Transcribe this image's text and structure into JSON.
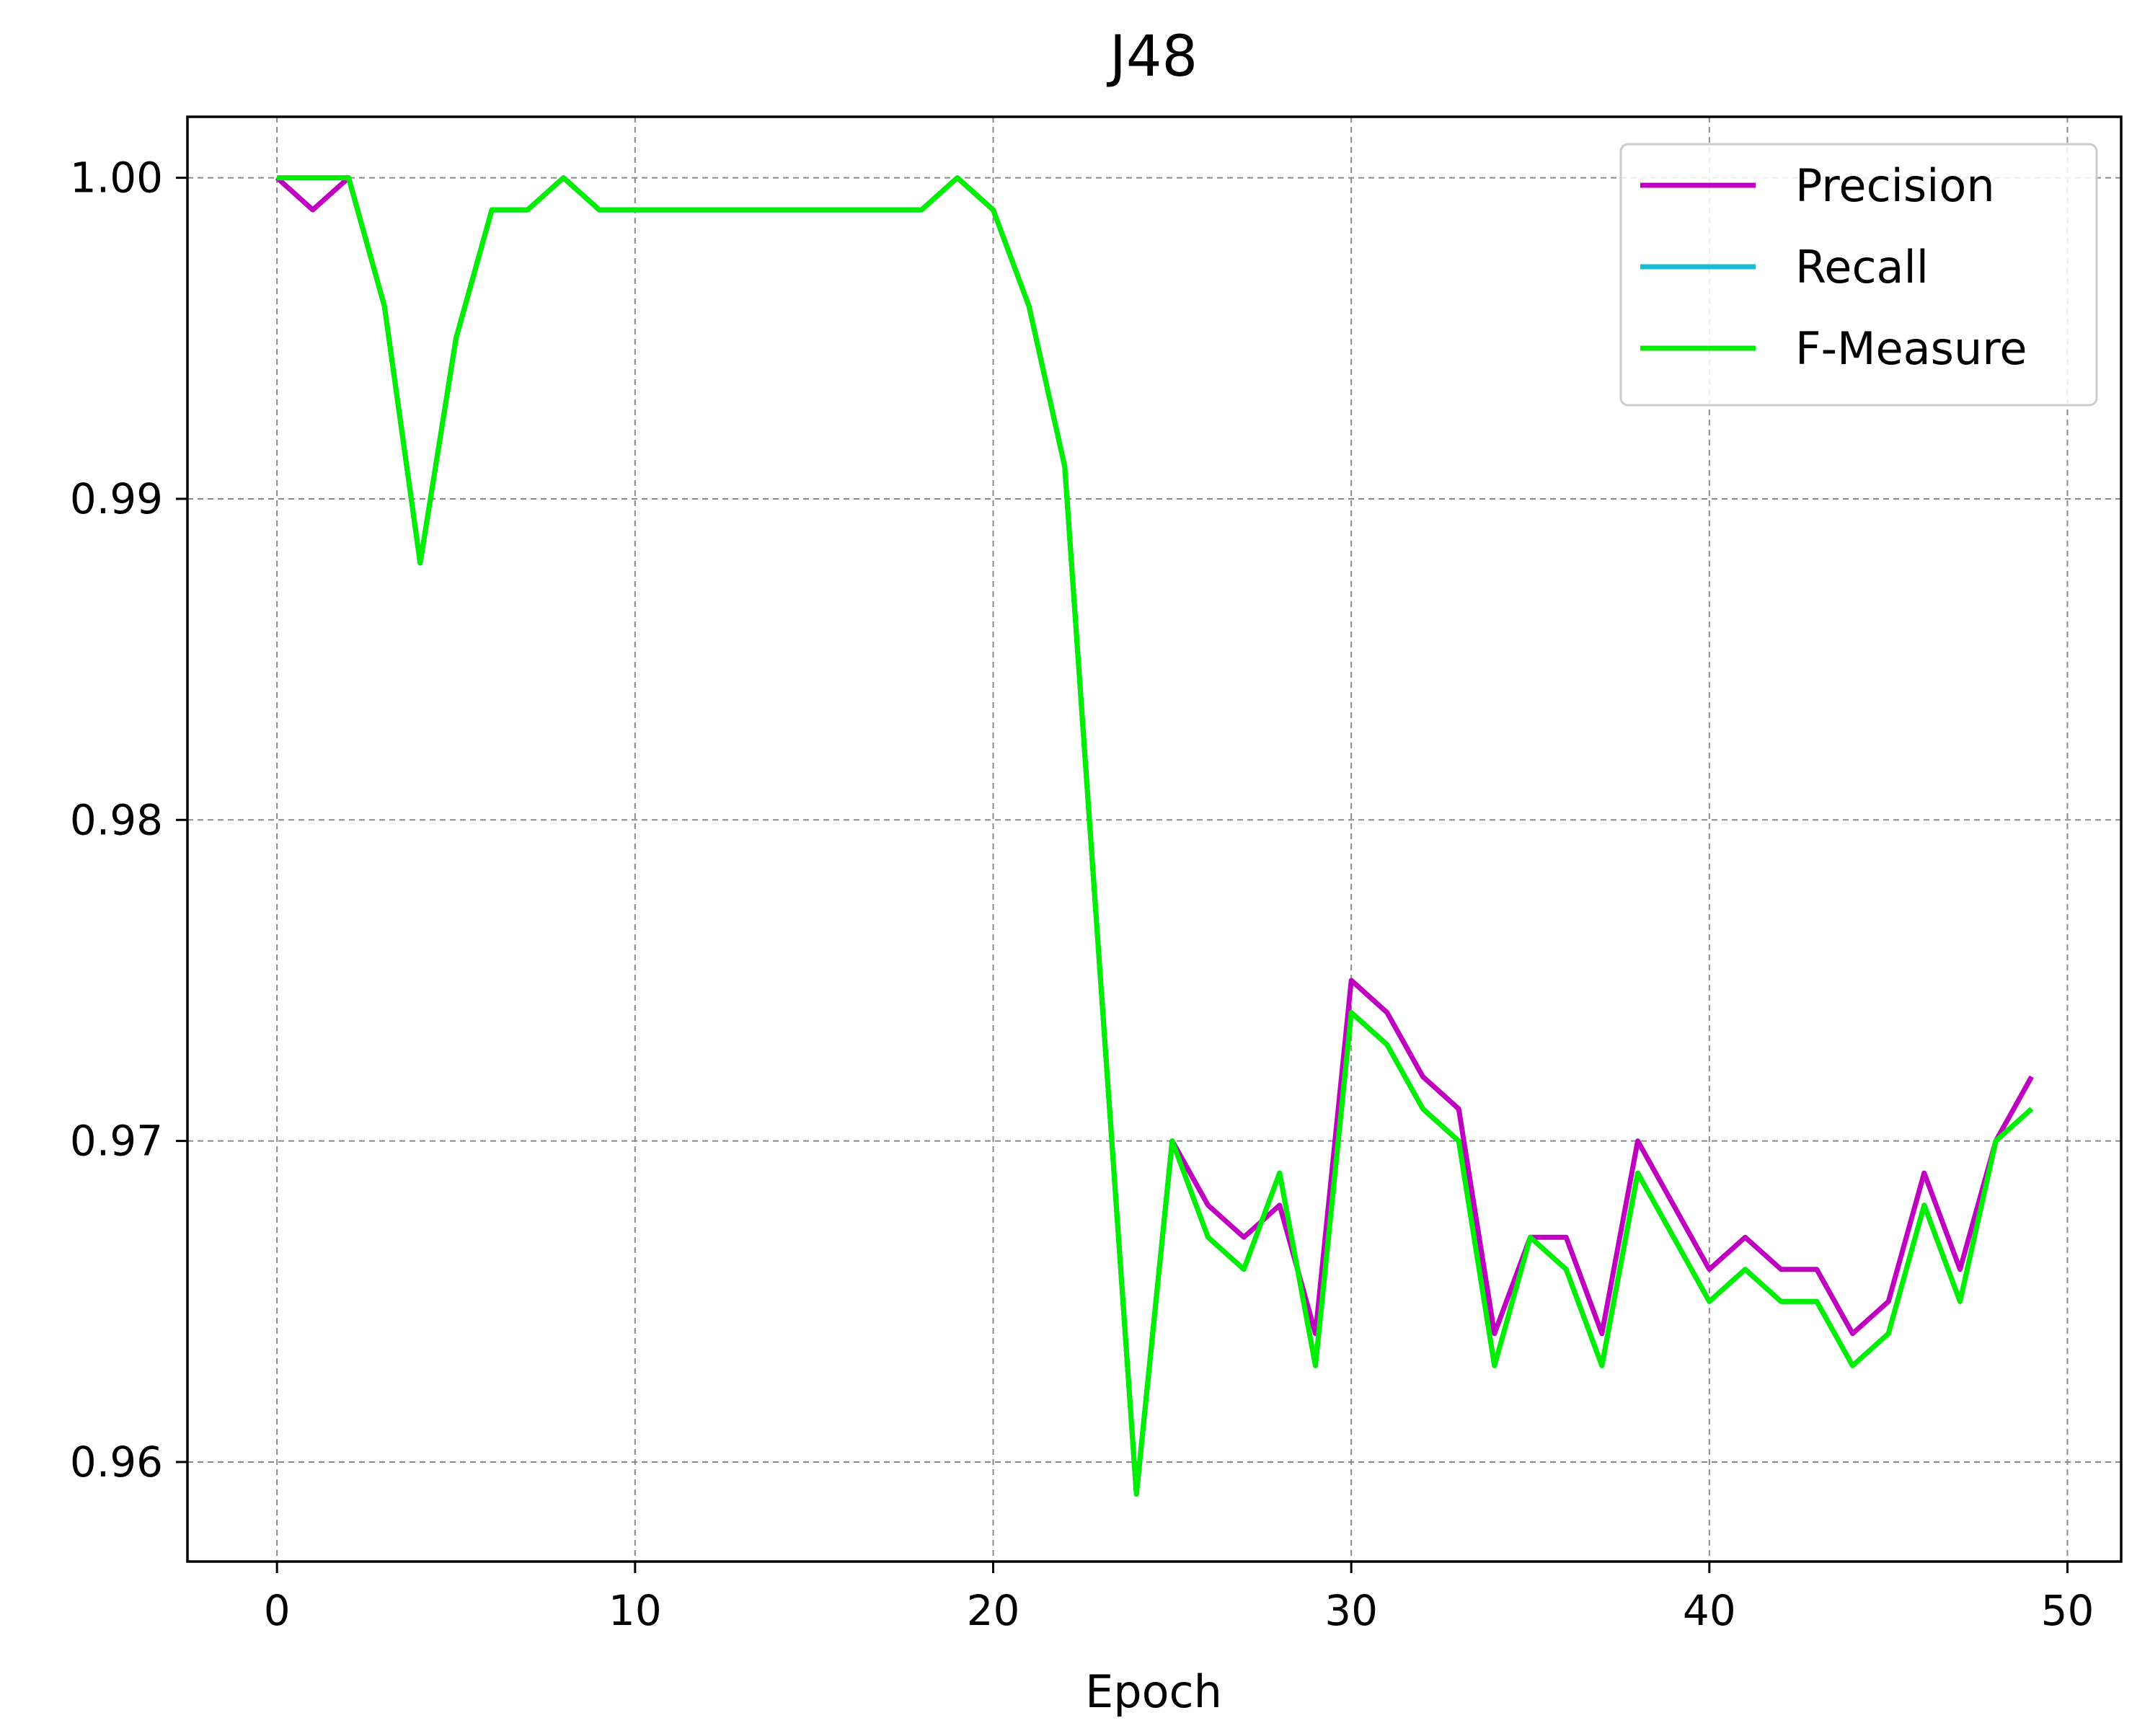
{
  "chart_data": {
    "type": "line",
    "title": "J48",
    "xlabel": "Epoch",
    "ylabel": "",
    "xlim": [
      -2.5,
      51.5
    ],
    "ylim": [
      0.9569,
      1.0019
    ],
    "xticks": [
      0,
      10,
      20,
      30,
      40,
      50
    ],
    "yticks": [
      0.96,
      0.97,
      0.98,
      0.99,
      1.0
    ],
    "xtick_labels": [
      "0",
      "10",
      "20",
      "30",
      "40",
      "50"
    ],
    "ytick_labels": [
      "0.96",
      "0.97",
      "0.98",
      "0.99",
      "1.00"
    ],
    "grid": true,
    "legend_position": "top-right",
    "x": [
      0,
      1,
      2,
      3,
      4,
      5,
      6,
      7,
      8,
      9,
      10,
      11,
      12,
      13,
      14,
      15,
      16,
      17,
      18,
      19,
      20,
      21,
      22,
      23,
      24,
      25,
      26,
      27,
      28,
      29,
      30,
      31,
      32,
      33,
      34,
      35,
      36,
      37,
      38,
      39,
      40,
      41,
      42,
      43,
      44,
      45,
      46,
      47,
      48,
      49
    ],
    "series": [
      {
        "name": "Precision",
        "color": "#c000c0",
        "values": [
          1.0,
          0.999,
          1.0,
          0.996,
          0.988,
          0.995,
          0.999,
          0.999,
          1.0,
          0.999,
          0.999,
          0.999,
          0.999,
          0.999,
          0.999,
          0.999,
          0.999,
          0.999,
          0.999,
          1.0,
          0.999,
          0.996,
          0.991,
          0.975,
          0.959,
          0.97,
          0.968,
          0.967,
          0.968,
          0.964,
          0.975,
          0.974,
          0.972,
          0.971,
          0.964,
          0.967,
          0.967,
          0.964,
          0.97,
          0.968,
          0.966,
          0.967,
          0.966,
          0.966,
          0.964,
          0.965,
          0.969,
          0.966,
          0.97,
          0.972
        ]
      },
      {
        "name": "Recall",
        "color": "#17becf",
        "values": [
          1.0,
          1.0,
          1.0,
          0.996,
          0.988,
          0.995,
          0.999,
          0.999,
          1.0,
          0.999,
          0.999,
          0.999,
          0.999,
          0.999,
          0.999,
          0.999,
          0.999,
          0.999,
          0.999,
          1.0,
          0.999,
          0.996,
          0.991,
          0.975,
          0.959,
          0.97,
          0.967,
          0.966,
          0.969,
          0.963,
          0.974,
          0.973,
          0.971,
          0.97,
          0.963,
          0.967,
          0.966,
          0.963,
          0.969,
          0.967,
          0.965,
          0.966,
          0.965,
          0.965,
          0.963,
          0.964,
          0.968,
          0.965,
          0.97,
          0.971
        ]
      },
      {
        "name": "F-Measure",
        "color": "#00ee00",
        "values": [
          1.0,
          1.0,
          1.0,
          0.996,
          0.988,
          0.995,
          0.999,
          0.999,
          1.0,
          0.999,
          0.999,
          0.999,
          0.999,
          0.999,
          0.999,
          0.999,
          0.999,
          0.999,
          0.999,
          1.0,
          0.999,
          0.996,
          0.991,
          0.975,
          0.959,
          0.97,
          0.967,
          0.966,
          0.969,
          0.963,
          0.974,
          0.973,
          0.971,
          0.97,
          0.963,
          0.967,
          0.966,
          0.963,
          0.969,
          0.967,
          0.965,
          0.966,
          0.965,
          0.965,
          0.963,
          0.964,
          0.968,
          0.965,
          0.97,
          0.971
        ]
      }
    ]
  }
}
